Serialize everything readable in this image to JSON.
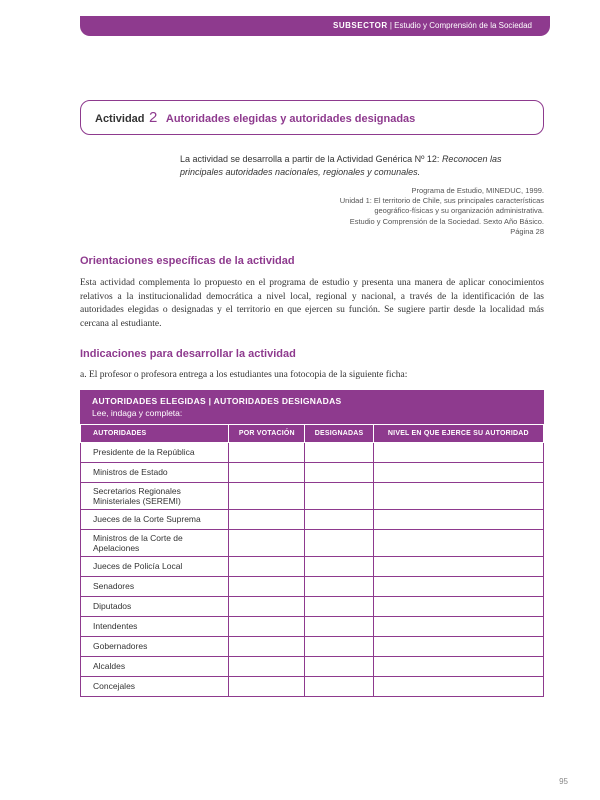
{
  "header": {
    "label": "SUBSECTOR",
    "sep": " | ",
    "text": "Estudio y Comprensión de la Sociedad"
  },
  "activity": {
    "label": "Actividad",
    "num": "2",
    "title": "Autoridades elegidas y autoridades designadas"
  },
  "intro": {
    "lead": "La actividad se desarrolla a partir de la Actividad Genérica Nº 12: ",
    "ital": "Reconocen las principales autoridades nacionales, regionales y comunales."
  },
  "source": {
    "l1": "Programa de Estudio, MINEDUC, 1999.",
    "l2": "Unidad 1: El territorio de Chile, sus principales características",
    "l3": "geográfico-físicas y su organización administrativa.",
    "l4": "Estudio y Comprensión de la Sociedad. Sexto Año Básico.",
    "l5": "Página 28"
  },
  "sec1": {
    "h": "Orientaciones específicas de la actividad",
    "p": "Esta actividad complementa lo propuesto en el programa de estudio y presenta una manera de aplicar conocimientos relativos a la institucionalidad democrática a nivel local, regional y nacional, a través de la identificación de las autoridades elegidas o designadas y el territorio en que ejercen su función. Se sugiere partir desde la localidad más cercana al estudiante."
  },
  "sec2": {
    "h": "Indicaciones para desarrollar la actividad",
    "a": "a.   El profesor o profesora entrega a los estudiantes una fotocopia de la siguiente ficha:"
  },
  "table": {
    "banner1": "AUTORIDADES ELEGIDAS  |  AUTORIDADES DESIGNADAS",
    "banner2": "Lee, indaga y completa:",
    "cols": [
      "AUTORIDADES",
      "POR VOTACIÓN",
      "DESIGNADAS",
      "NIVEL EN QUE EJERCE SU AUTORIDAD"
    ],
    "rows": [
      "Presidente de la República",
      "Ministros de Estado",
      "Secretarios Regionales Ministeriales (SEREMI)",
      "Jueces de la Corte Suprema",
      "Ministros de la Corte de Apelaciones",
      "Jueces de Policía Local",
      "Senadores",
      "Diputados",
      "Intendentes",
      "Gobernadores",
      "Alcaldes",
      "Concejales"
    ]
  },
  "pagenum": "95",
  "colors": {
    "accent": "#8e3a8e"
  }
}
